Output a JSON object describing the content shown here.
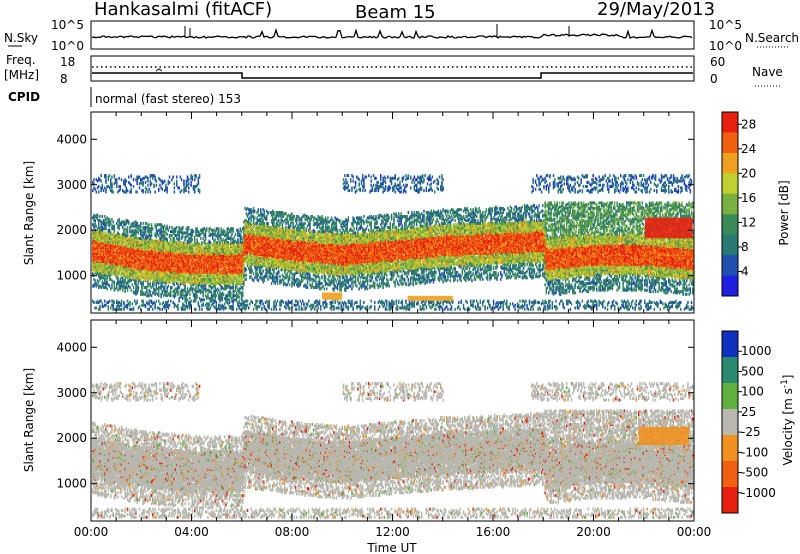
{
  "header": {
    "station": "Hankasalmi (fitACF)",
    "beam": "Beam 15",
    "date": "29/May/2013"
  },
  "top_panels": {
    "nsky_label": "N.Sky",
    "nsky_ticks": [
      "10^5",
      "10^0"
    ],
    "nsearch_label": "N.Search",
    "nsearch_ticks": [
      "10^5",
      "10^0"
    ],
    "freq_label": "Freq.",
    "freq_unit": "[MHz]",
    "freq_ticks": [
      "18",
      "8"
    ],
    "nave_label": "Nave",
    "nave_ticks": [
      "60",
      "0"
    ],
    "cpid_label": "CPID",
    "cpid_text": "normal (fast stereo) 153"
  },
  "colors": {
    "power": [
      "#1f1fe0",
      "#2050b0",
      "#2a7a74",
      "#3a8a5a",
      "#7ab040",
      "#c0d030",
      "#f0a020",
      "#f06010",
      "#e82010"
    ],
    "velocity": [
      "#1030c0",
      "#2a8a70",
      "#60b040",
      "#b8b8b0",
      "#f09020",
      "#f06010",
      "#e82010"
    ]
  },
  "chart_data": [
    {
      "type": "heatmap",
      "panel": "power",
      "xlabel": "",
      "ylabel": "Slant Range [km]",
      "x_range_hours": [
        0,
        24
      ],
      "x_ticks": [
        "00:00",
        "04:00",
        "08:00",
        "12:00",
        "16:00",
        "20:00",
        "00:00"
      ],
      "ylim": [
        180,
        4600
      ],
      "y_ticks": [
        1000,
        2000,
        3000,
        4000
      ],
      "colorbar_label": "Power [dB]",
      "colorbar_ticks": [
        4,
        8,
        12,
        16,
        20,
        24,
        28
      ],
      "colorbar_range": [
        0,
        30
      ],
      "main_band": [
        {
          "t": 0,
          "range": 1550
        },
        {
          "t": 2,
          "range": 1350
        },
        {
          "t": 4,
          "range": 1250
        },
        {
          "t": 6,
          "range": 1250
        },
        {
          "t": 6.1,
          "range": 1700
        },
        {
          "t": 8,
          "range": 1550
        },
        {
          "t": 10,
          "range": 1450
        },
        {
          "t": 12,
          "range": 1550
        },
        {
          "t": 14,
          "range": 1650
        },
        {
          "t": 16,
          "range": 1700
        },
        {
          "t": 18,
          "range": 1750
        },
        {
          "t": 18.1,
          "range": 1350
        },
        {
          "t": 20,
          "range": 1450
        },
        {
          "t": 22,
          "range": 1450
        },
        {
          "t": 24,
          "range": 1350
        }
      ],
      "patches": [
        {
          "t": 9.6,
          "range": 550,
          "dt": 0.8,
          "dr": 160,
          "power": 22
        },
        {
          "t": 13.5,
          "range": 500,
          "dt": 1.8,
          "dr": 110,
          "power": 22
        },
        {
          "t": 23.0,
          "range": 2050,
          "dt": 1.9,
          "dr": 450,
          "power": 28
        }
      ]
    },
    {
      "type": "heatmap",
      "panel": "velocity",
      "xlabel": "Time UT",
      "ylabel": "Slant Range [km]",
      "x_range_hours": [
        0,
        24
      ],
      "x_ticks": [
        "00:00",
        "04:00",
        "08:00",
        "12:00",
        "16:00",
        "20:00",
        "00:00"
      ],
      "ylim": [
        180,
        4600
      ],
      "y_ticks": [
        1000,
        2000,
        3000,
        4000
      ],
      "colorbar_label": "Velocity [m s-1]",
      "colorbar_label_parts": [
        "Velocity  [m s",
        "-1",
        "]"
      ],
      "colorbar_ticks": [
        1000,
        500,
        100,
        25,
        -25,
        -100,
        -500,
        -1000
      ],
      "patches": [
        {
          "t": 22.8,
          "range": 2050,
          "dt": 2.0,
          "dr": 400,
          "velocity": -300
        }
      ]
    }
  ]
}
